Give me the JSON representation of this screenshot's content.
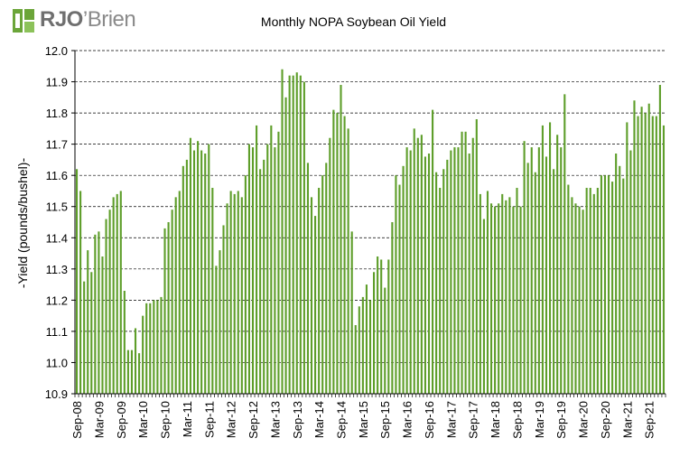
{
  "logo": {
    "text_rj": "RJO",
    "text_apostrophe": "’",
    "text_brien": "Brien"
  },
  "colors": {
    "bar": "#5e9e2a",
    "grid": "#000000",
    "logo_green": "#6ba539"
  },
  "chart_data": {
    "type": "bar",
    "title": "Monthly NOPA Soybean Oil Yield",
    "xlabel": "",
    "ylabel": "-Yield (pounds/bushel)-",
    "ylim": [
      10.9,
      12.0
    ],
    "yticks": [
      "10.9",
      "11.0",
      "11.1",
      "11.2",
      "11.3",
      "11.4",
      "11.5",
      "11.6",
      "11.7",
      "11.8",
      "11.9",
      "12.0"
    ],
    "grid": true,
    "start_month": "2008-09",
    "xtick_labels": [
      "Sep-08",
      "Mar-09",
      "Sep-09",
      "Mar-10",
      "Sep-10",
      "Mar-11",
      "Sep-11",
      "Mar-12",
      "Sep-12",
      "Mar-13",
      "Sep-13",
      "Mar-14",
      "Sep-14",
      "Mar-15",
      "Sep-15",
      "Mar-16",
      "Sep-16",
      "Mar-17",
      "Sep-17",
      "Mar-18",
      "Sep-18",
      "Mar-19",
      "Sep-19",
      "Mar-20",
      "Sep-20",
      "Mar-21",
      "Sep-21"
    ],
    "values": [
      11.62,
      11.55,
      11.26,
      11.36,
      11.29,
      11.41,
      11.42,
      11.34,
      11.46,
      11.49,
      11.53,
      11.54,
      11.55,
      11.23,
      11.04,
      11.04,
      11.11,
      11.03,
      11.15,
      11.19,
      11.19,
      11.2,
      11.2,
      11.21,
      11.43,
      11.45,
      11.49,
      11.53,
      11.55,
      11.63,
      11.65,
      11.72,
      11.68,
      11.71,
      11.68,
      11.67,
      11.7,
      11.56,
      11.31,
      11.36,
      11.44,
      11.51,
      11.55,
      11.54,
      11.55,
      11.53,
      11.6,
      11.7,
      11.69,
      11.76,
      11.62,
      11.65,
      11.7,
      11.76,
      11.69,
      11.74,
      11.94,
      11.85,
      11.92,
      11.92,
      11.93,
      11.92,
      11.9,
      11.64,
      11.53,
      11.47,
      11.56,
      11.6,
      11.64,
      11.72,
      11.81,
      11.8,
      11.89,
      11.79,
      11.75,
      11.42,
      11.12,
      11.18,
      11.21,
      11.25,
      11.2,
      11.29,
      11.34,
      11.33,
      11.24,
      11.33,
      11.45,
      11.6,
      11.57,
      11.63,
      11.69,
      11.68,
      11.75,
      11.72,
      11.73,
      11.66,
      11.67,
      11.81,
      11.61,
      11.56,
      11.62,
      11.65,
      11.68,
      11.69,
      11.69,
      11.74,
      11.74,
      11.67,
      11.72,
      11.78,
      11.54,
      11.46,
      11.55,
      11.51,
      11.5,
      11.51,
      11.54,
      11.52,
      11.53,
      11.5,
      11.56,
      11.5,
      11.71,
      11.64,
      11.69,
      11.61,
      11.69,
      11.76,
      11.66,
      11.77,
      11.62,
      11.73,
      11.69,
      11.86,
      11.57,
      11.53,
      11.51,
      11.5,
      11.49,
      11.56,
      11.56,
      11.54,
      11.56,
      11.6,
      11.6,
      11.6,
      11.58,
      11.67,
      11.63,
      11.59,
      11.77,
      11.68,
      11.84,
      11.79,
      11.82,
      11.8,
      11.83,
      11.79,
      11.79,
      11.89,
      11.76
    ]
  }
}
